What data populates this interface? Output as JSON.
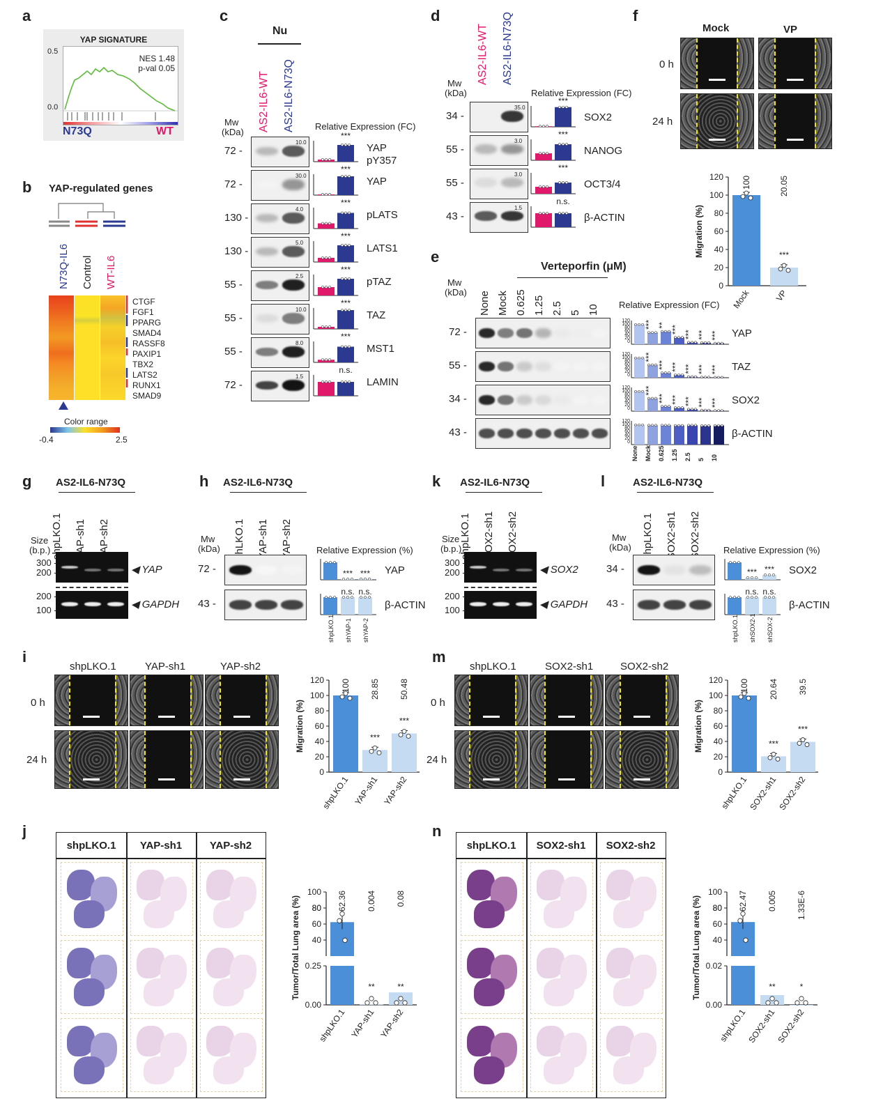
{
  "panel_letters": [
    "a",
    "b",
    "c",
    "d",
    "e",
    "f",
    "g",
    "h",
    "i",
    "j",
    "k",
    "l",
    "m",
    "n"
  ],
  "a": {
    "title": "YAP SIGNATURE",
    "nes": "NES 1.48",
    "pval": "p-val 0.05",
    "y_top": "0.5",
    "y_zero": "0.0",
    "left": "N73Q",
    "right": "WT"
  },
  "b": {
    "title": "YAP-regulated genes",
    "cols": [
      "N73Q-IL6",
      "Control",
      "WT-IL6"
    ],
    "genes": [
      "CTGF",
      "FGF1",
      "PPARG",
      "SMAD4",
      "RASSF8",
      "PAXIP1",
      "TBX2",
      "LATS2",
      "RUNX1",
      "SMAD9"
    ],
    "legend": "Color range",
    "range_min": "-0.4",
    "range_max": "2.5"
  },
  "c": {
    "header": "Nu",
    "lanes": [
      "AS2-IL6-WT",
      "AS2-IL6-N73Q"
    ],
    "mw": "Mw",
    "kda": "(kDa)",
    "relexp": "Relative Expression (FC)",
    "rows": [
      {
        "mw": "72",
        "label": "YAP",
        "label2": "pY357",
        "ymax": "10.0",
        "sig": "***"
      },
      {
        "mw": "72",
        "label": "YAP",
        "label2": "",
        "ymax": "30.0",
        "sig": "***"
      },
      {
        "mw": "130",
        "label": "pLATS",
        "label2": "",
        "ymax": "4.0",
        "sig": "***"
      },
      {
        "mw": "130",
        "label": "LATS1",
        "label2": "",
        "ymax": "5.0",
        "sig": "***"
      },
      {
        "mw": "55",
        "label": "pTAZ",
        "label2": "",
        "ymax": "2.5",
        "sig": "***"
      },
      {
        "mw": "55",
        "label": "TAZ",
        "label2": "",
        "ymax": "10.0",
        "sig": "***"
      },
      {
        "mw": "55",
        "label": "MST1",
        "label2": "",
        "ymax": "8.0",
        "sig": "***"
      },
      {
        "mw": "72",
        "label": "LAMIN",
        "label2": "",
        "ymax": "1.5",
        "sig": "n.s."
      }
    ]
  },
  "d": {
    "lanes": [
      "AS2-IL6-WT",
      "AS2-IL6-N73Q"
    ],
    "mw": "Mw",
    "kda": "(kDa)",
    "relexp": "Relative Expression (FC)",
    "rows": [
      {
        "mw": "34",
        "label": "SOX2",
        "ymax": "35.0",
        "sig": "***"
      },
      {
        "mw": "55",
        "label": "NANOG",
        "ymax": "3.0",
        "sig": "***"
      },
      {
        "mw": "55",
        "label": "OCT3/4",
        "ymax": "3.0",
        "sig": "***"
      },
      {
        "mw": "43",
        "label": "β-ACTIN",
        "ymax": "1.5",
        "sig": "n.s."
      }
    ]
  },
  "e": {
    "treatment": "Verteporfin (μM)",
    "lanes": [
      "None",
      "Mock",
      "0.625",
      "1.25",
      "2.5",
      "5",
      "10"
    ],
    "mw": "Mw",
    "kda": "(kDa)",
    "relexp": "Relative Expression (FC)",
    "rows": [
      {
        "mw": "72",
        "label": "YAP",
        "sigs": [
          "",
          "***",
          "**",
          "***",
          "***",
          "***",
          "***"
        ]
      },
      {
        "mw": "55",
        "label": "TAZ",
        "sigs": [
          "",
          "***",
          "***",
          "***",
          "***",
          "***",
          "***"
        ]
      },
      {
        "mw": "34",
        "label": "SOX2",
        "sigs": [
          "",
          "***",
          "***",
          "***",
          "***",
          "***",
          "***"
        ]
      },
      {
        "mw": "43",
        "label": "β-ACTIN",
        "sigs": [
          "",
          "",
          "",
          "",
          "",
          "",
          ""
        ]
      }
    ],
    "ticks": [
      "0",
      "20",
      "40",
      "60",
      "80",
      "100",
      "120"
    ]
  },
  "f": {
    "cols": [
      "Mock",
      "VP"
    ],
    "rows": [
      "0 h",
      "24 h"
    ]
  },
  "g": {
    "title": "AS2-IL6-N73Q",
    "lanes": [
      "shpLKO.1",
      "YAP-sh1",
      "YAP-sh2"
    ],
    "size": "Size",
    "bp": "(b.p.)",
    "gene1": "YAP",
    "gene2": "GAPDH",
    "m": [
      "300",
      "200",
      "200",
      "100"
    ]
  },
  "h": {
    "title": "AS2-IL6-N73Q",
    "lanes": [
      "shLKO.1",
      "YAP-sh1",
      "YAP-sh2"
    ],
    "xlabels": [
      "shpLKO.1",
      "shYAP-1",
      "shYAP-2"
    ],
    "mw": "Mw",
    "kda": "(kDa)",
    "relexp": "Relative Expression (%)",
    "rows": [
      {
        "mw": "72",
        "label": "YAP",
        "sigs": [
          "",
          "***",
          "***"
        ]
      },
      {
        "mw": "43",
        "label": "β-ACTIN",
        "sigs": [
          "",
          "n.s.",
          "n.s."
        ]
      }
    ]
  },
  "i": {
    "cols": [
      "shpLKO.1",
      "YAP-sh1",
      "YAP-sh2"
    ],
    "rows": [
      "0 h",
      "24 h"
    ]
  },
  "j": {
    "cols": [
      "shpLKO.1",
      "YAP-sh1",
      "YAP-sh2"
    ]
  },
  "k": {
    "title": "AS2-IL6-N73Q",
    "lanes": [
      "shpLKO.1",
      "SOX2-sh1",
      "SOX2-sh2"
    ],
    "size": "Size",
    "bp": "(b.p.)",
    "gene1": "SOX2",
    "gene2": "GAPDH",
    "m": [
      "300",
      "200",
      "200",
      "100"
    ]
  },
  "l": {
    "title": "AS2-IL6-N73Q",
    "lanes": [
      "shpLKO.1",
      "SOX2-sh1",
      "SOX2-sh2"
    ],
    "xlabels": [
      "shpLKO.1",
      "shSOX2-1",
      "shSOX-2"
    ],
    "mw": "Mw",
    "kda": "(kDa)",
    "relexp": "Relative Expression (%)",
    "rows": [
      {
        "mw": "34",
        "label": "SOX2",
        "sigs": [
          "",
          "***",
          "***"
        ]
      },
      {
        "mw": "43",
        "label": "β-ACTIN",
        "sigs": [
          "",
          "n.s.",
          "n.s."
        ]
      }
    ]
  },
  "m": {
    "cols": [
      "shpLKO.1",
      "SOX2-sh1",
      "SOX2-sh2"
    ],
    "rows": [
      "0 h",
      "24 h"
    ]
  },
  "n": {
    "cols": [
      "shpLKO.1",
      "SOX2-sh1",
      "SOX2-sh2"
    ]
  },
  "colors": {
    "wt": "#e0196b",
    "n73q": "#2b3990",
    "bar_dark": "#4a8fd8",
    "bar_light": "#c5dbf2",
    "sig_gray": "#888888",
    "scratch": "#f2e41c",
    "he_purple": "#6a5aa8",
    "he_pink": "#e8c7dd"
  },
  "chart_data": [
    {
      "type": "bar",
      "panel": "f",
      "categories": [
        "Mock",
        "VP"
      ],
      "values": [
        100,
        20.05
      ],
      "labels": [
        "100",
        "20.05"
      ],
      "sigs": [
        "",
        "***"
      ],
      "ylabel": "Migration (%)",
      "ylim": [
        0,
        120
      ],
      "ticks": [
        "0",
        "20",
        "40",
        "60",
        "80",
        "100",
        "120"
      ]
    },
    {
      "type": "bar",
      "panel": "i",
      "categories": [
        "shpLKO.1",
        "YAP-sh1",
        "YAP-sh2"
      ],
      "values": [
        100,
        28.85,
        50.48
      ],
      "labels": [
        "100",
        "28.85",
        "50.48"
      ],
      "sigs": [
        "",
        "***",
        "***"
      ],
      "ylabel": "Migration (%)",
      "ylim": [
        0,
        120
      ],
      "ticks": [
        "0",
        "20",
        "40",
        "60",
        "80",
        "100",
        "120"
      ]
    },
    {
      "type": "bar",
      "panel": "m",
      "categories": [
        "shpLKO.1",
        "SOX2-sh1",
        "SOX2-sh2"
      ],
      "values": [
        100,
        20.64,
        39.5
      ],
      "labels": [
        "100",
        "20.64",
        "39.5"
      ],
      "sigs": [
        "",
        "***",
        "***"
      ],
      "ylabel": "Migration (%)",
      "ylim": [
        0,
        120
      ],
      "ticks": [
        "0",
        "20",
        "40",
        "60",
        "80",
        "100",
        "120"
      ]
    },
    {
      "type": "bar",
      "panel": "j",
      "categories": [
        "shpLKO.1",
        "YAP-sh1",
        "YAP-sh2"
      ],
      "values": [
        62.36,
        0.004,
        0.08
      ],
      "labels": [
        "62.36",
        "0.004",
        "0.08"
      ],
      "sigs": [
        "",
        "**",
        "**"
      ],
      "ylabel": "Tumor/Total Lung area (%)",
      "broken_axis": true,
      "ticks": [
        "0.00",
        "0.25",
        "40",
        "60",
        "80",
        "100"
      ]
    },
    {
      "type": "bar",
      "panel": "n",
      "categories": [
        "shpLKO.1",
        "SOX2-sh1",
        "SOX2-sh2"
      ],
      "values": [
        62.47,
        0.005,
        1.33e-06
      ],
      "labels": [
        "62.47",
        "0.005",
        "1.33E-6"
      ],
      "sigs": [
        "",
        "**",
        "*"
      ],
      "ylabel": "Tumor/Total Lung area (%)",
      "broken_axis": true,
      "ticks": [
        "0.00",
        "0.02",
        "40",
        "60",
        "80",
        "100"
      ]
    }
  ]
}
